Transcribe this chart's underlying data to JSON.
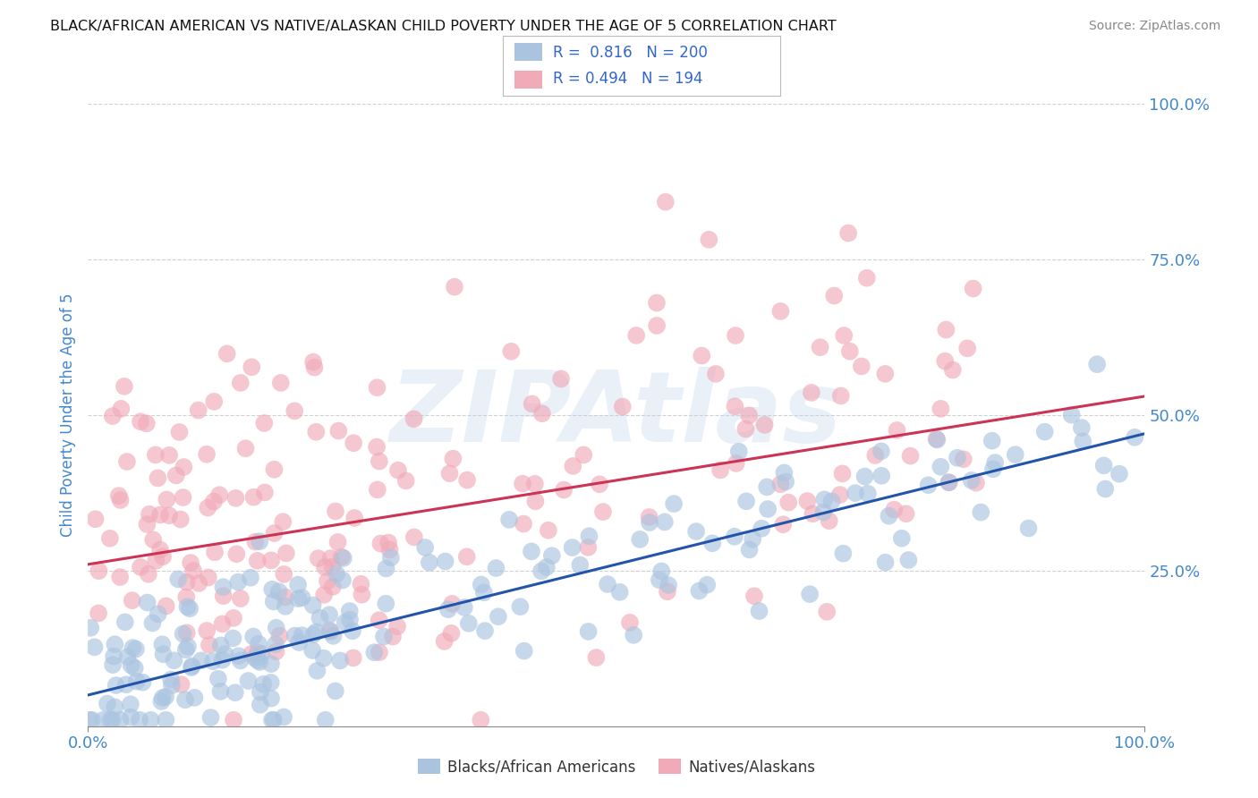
{
  "title": "BLACK/AFRICAN AMERICAN VS NATIVE/ALASKAN CHILD POVERTY UNDER THE AGE OF 5 CORRELATION CHART",
  "source": "Source: ZipAtlas.com",
  "ylabel": "Child Poverty Under the Age of 5",
  "xlim": [
    0,
    1
  ],
  "ylim": [
    0,
    1
  ],
  "blue_R": 0.816,
  "blue_N": 200,
  "pink_R": 0.494,
  "pink_N": 194,
  "blue_color": "#aac4e0",
  "pink_color": "#f0aab8",
  "blue_line_color": "#2255aa",
  "pink_line_color": "#cc3355",
  "legend_text_color": "#3366cc",
  "legend_label_blue": "Blacks/African Americans",
  "legend_label_pink": "Natives/Alaskans",
  "watermark": "ZIPAtlas",
  "watermark_color": "#b8cfe8",
  "background_color": "#ffffff",
  "title_color": "#111111",
  "tick_label_color": "#4488cc",
  "grid_color": "#cccccc",
  "seed": 42,
  "blue_slope": 0.42,
  "blue_intercept": 0.05,
  "blue_noise": 0.06,
  "pink_slope": 0.27,
  "pink_intercept": 0.26,
  "pink_noise": 0.14
}
